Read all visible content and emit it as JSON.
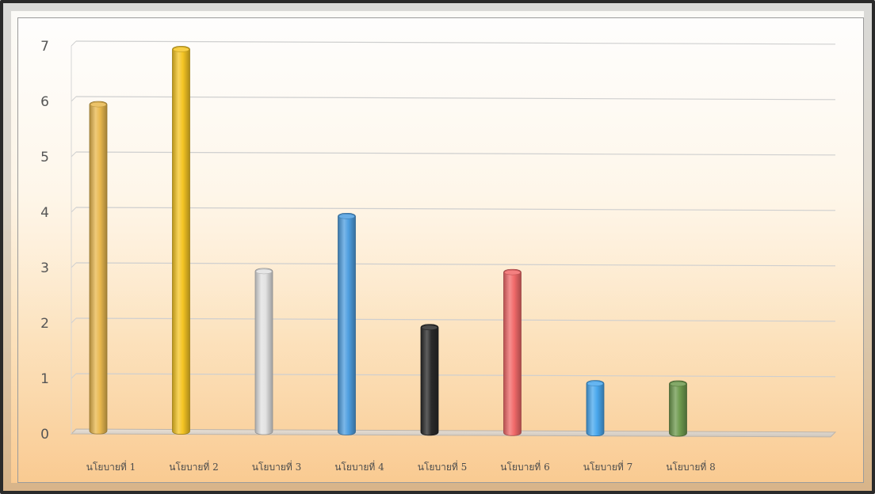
{
  "chart_data": {
    "type": "bar",
    "categories": [
      "นโยบายที่ 1",
      "นโยบายที่ 2",
      "นโยบายที่ 3",
      "นโยบายที่ 4",
      "นโยบายที่ 5",
      "นโยบายที่ 6",
      "นโยบายที่ 7",
      "นโยบายที่ 8"
    ],
    "values": [
      6,
      7,
      3,
      4,
      2,
      3,
      1,
      1
    ],
    "bar_colors": [
      "#e9b84e",
      "#f5c524",
      "#e2e2e2",
      "#4f9fe0",
      "#2a2a2a",
      "#f26a6a",
      "#4aa8ee",
      "#6e9a4e"
    ],
    "title": "",
    "xlabel": "",
    "ylabel": "",
    "ylim": [
      0,
      7
    ],
    "yticks": [
      0,
      1,
      2,
      3,
      4,
      5,
      6,
      7
    ],
    "grid": true,
    "legend": "none"
  }
}
